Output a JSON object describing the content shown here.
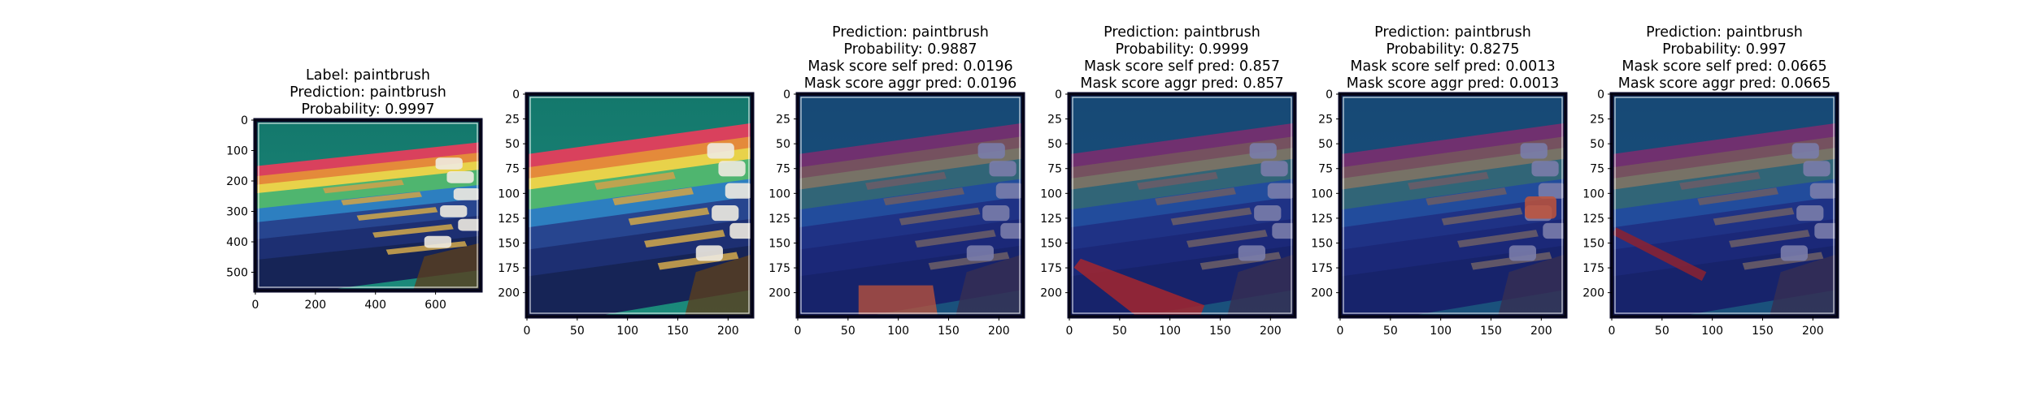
{
  "figure": {
    "background": "#ffffff"
  },
  "colors": {
    "image_frame": "#0a0a28",
    "mask_tint": "#1a237e",
    "highlight": "#c0543a",
    "teal_bg": "#1b8a7b"
  },
  "chart_data": [
    {
      "type": "image",
      "title_lines": [
        "Label: paintbrush",
        "Prediction: paintbrush",
        "Probability: 0.9997"
      ],
      "xticks": [
        0,
        200,
        400,
        600
      ],
      "yticks": [
        0,
        100,
        200,
        300,
        400,
        500
      ],
      "xlim": [
        0,
        750
      ],
      "ylim": [
        0,
        560
      ],
      "image_content": "original-photo",
      "highlight_region": "none"
    },
    {
      "type": "image",
      "title_lines": [],
      "xticks": [
        0,
        50,
        100,
        150,
        200
      ],
      "yticks": [
        0,
        25,
        50,
        75,
        100,
        125,
        150,
        175,
        200
      ],
      "xlim": [
        0,
        224
      ],
      "ylim": [
        0,
        224
      ],
      "image_content": "resized-photo",
      "highlight_region": "none"
    },
    {
      "type": "image",
      "title_lines": [
        "Prediction: paintbrush",
        "Probability: 0.9887",
        "Mask score self pred: 0.0196",
        "Mask score aggr pred: 0.0196"
      ],
      "xticks": [
        0,
        50,
        100,
        150,
        200
      ],
      "yticks": [
        0,
        25,
        50,
        75,
        100,
        125,
        150,
        175,
        200
      ],
      "xlim": [
        0,
        224
      ],
      "ylim": [
        0,
        224
      ],
      "image_content": "masked-photo",
      "highlight_region": "brush-tip-bottom"
    },
    {
      "type": "image",
      "title_lines": [
        "Prediction: paintbrush",
        "Probability: 0.9999",
        "Mask score self pred: 0.857",
        "Mask score aggr pred: 0.857"
      ],
      "xticks": [
        0,
        50,
        100,
        150,
        200
      ],
      "yticks": [
        0,
        25,
        50,
        75,
        100,
        125,
        150,
        175,
        200
      ],
      "xlim": [
        0,
        224
      ],
      "ylim": [
        0,
        224
      ],
      "image_content": "masked-photo",
      "highlight_region": "brush-handle-bottom-left"
    },
    {
      "type": "image",
      "title_lines": [
        "Prediction: paintbrush",
        "Probability: 0.8275",
        "Mask score self pred: 0.0013",
        "Mask score aggr pred: 0.0013"
      ],
      "xticks": [
        0,
        50,
        100,
        150,
        200
      ],
      "yticks": [
        0,
        25,
        50,
        75,
        100,
        125,
        150,
        175,
        200
      ],
      "xlim": [
        0,
        224
      ],
      "ylim": [
        0,
        224
      ],
      "image_content": "masked-photo",
      "highlight_region": "brush-tip-right"
    },
    {
      "type": "image",
      "title_lines": [
        "Prediction: paintbrush",
        "Probability: 0.997",
        "Mask score self pred: 0.0665",
        "Mask score aggr pred: 0.0665"
      ],
      "xticks": [
        0,
        50,
        100,
        150,
        200
      ],
      "yticks": [
        0,
        25,
        50,
        75,
        100,
        125,
        150,
        175,
        200
      ],
      "xlim": [
        0,
        224
      ],
      "ylim": [
        0,
        224
      ],
      "image_content": "masked-photo",
      "highlight_region": "brush-handle-left"
    }
  ]
}
